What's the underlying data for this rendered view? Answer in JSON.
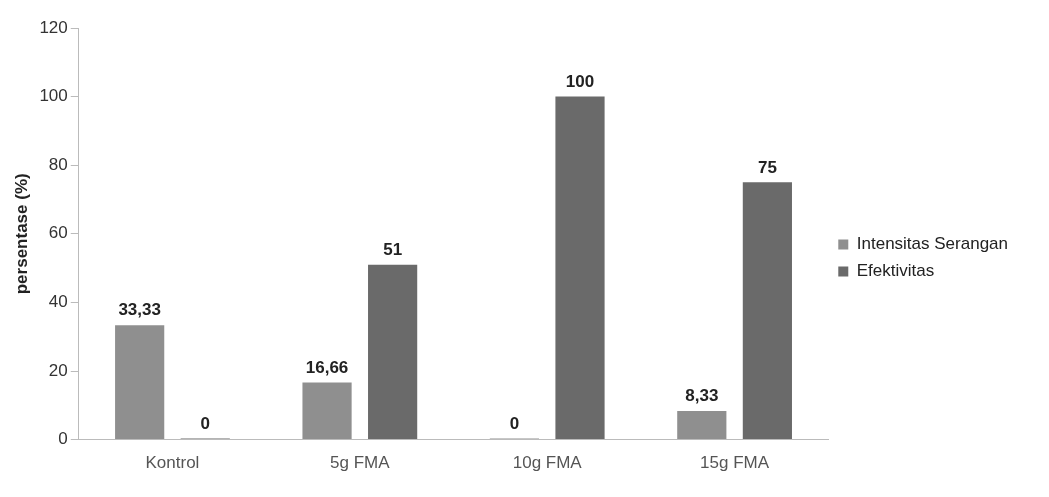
{
  "chart_data": {
    "type": "bar",
    "ylabel": "persentase (%)",
    "categories": [
      "Kontrol",
      "5g FMA",
      "10g FMA",
      "15g FMA"
    ],
    "series": [
      {
        "name": "Intensitas Serangan",
        "color": "#8f8f8f",
        "values": [
          33.33,
          16.66,
          0,
          8.33
        ],
        "value_labels": [
          "33,33",
          "16,66",
          "0",
          "8,33"
        ]
      },
      {
        "name": "Efektivitas",
        "color": "#6a6a6a",
        "values": [
          0,
          51,
          100,
          75
        ],
        "value_labels": [
          "0",
          "51",
          "100",
          "75"
        ]
      }
    ],
    "ylim": [
      0,
      120
    ],
    "yticks": [
      0,
      20,
      40,
      60,
      80,
      100,
      120
    ],
    "grid": false,
    "legend": "right"
  }
}
